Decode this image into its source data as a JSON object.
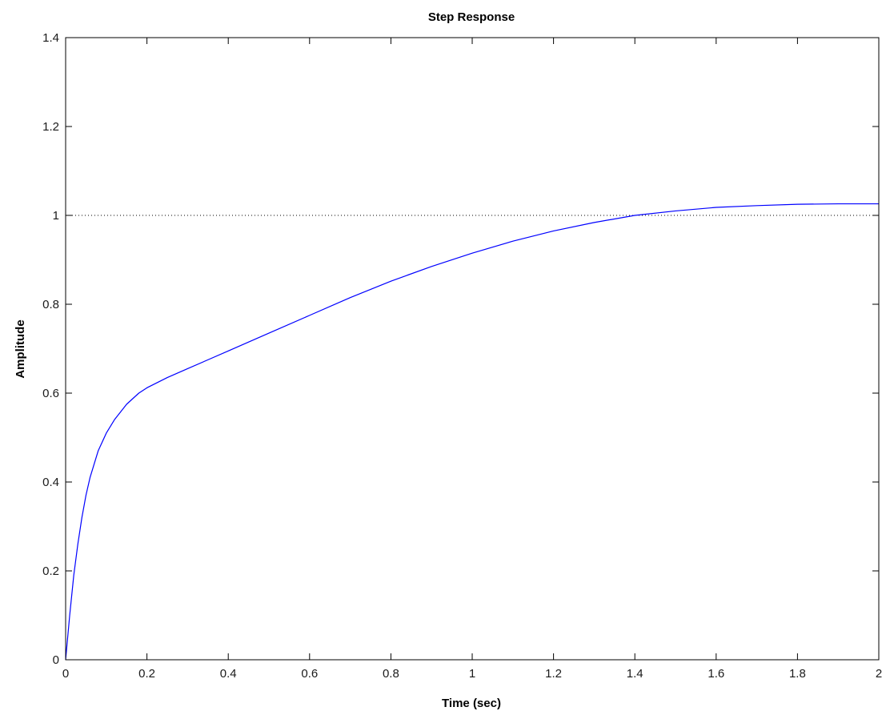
{
  "chart_data": {
    "type": "line",
    "title": "Step Response",
    "xlabel": "Time (sec)",
    "ylabel": "Amplitude",
    "xlim": [
      0,
      2
    ],
    "ylim": [
      0,
      1.4
    ],
    "x_ticks": [
      "0",
      "0.2",
      "0.4",
      "0.6",
      "0.8",
      "1",
      "1.2",
      "1.4",
      "1.6",
      "1.8",
      "2"
    ],
    "y_ticks": [
      "0",
      "0.2",
      "0.4",
      "0.6",
      "0.8",
      "1",
      "1.2",
      "1.4"
    ],
    "grid": false,
    "reference_line": {
      "y": 1,
      "style": "dotted"
    },
    "series": [
      {
        "color": "#0000ff",
        "x": [
          0,
          0.01,
          0.02,
          0.03,
          0.04,
          0.05,
          0.06,
          0.08,
          0.1,
          0.12,
          0.15,
          0.18,
          0.2,
          0.25,
          0.3,
          0.35,
          0.4,
          0.5,
          0.6,
          0.7,
          0.8,
          0.9,
          1.0,
          1.1,
          1.2,
          1.3,
          1.4,
          1.5,
          1.6,
          1.7,
          1.8,
          1.9,
          2.0
        ],
        "y": [
          0,
          0.1,
          0.19,
          0.26,
          0.32,
          0.37,
          0.41,
          0.47,
          0.51,
          0.54,
          0.575,
          0.6,
          0.612,
          0.635,
          0.655,
          0.675,
          0.695,
          0.735,
          0.775,
          0.815,
          0.852,
          0.885,
          0.915,
          0.942,
          0.965,
          0.984,
          1.0,
          1.01,
          1.018,
          1.022,
          1.025,
          1.026,
          1.026
        ]
      }
    ]
  }
}
